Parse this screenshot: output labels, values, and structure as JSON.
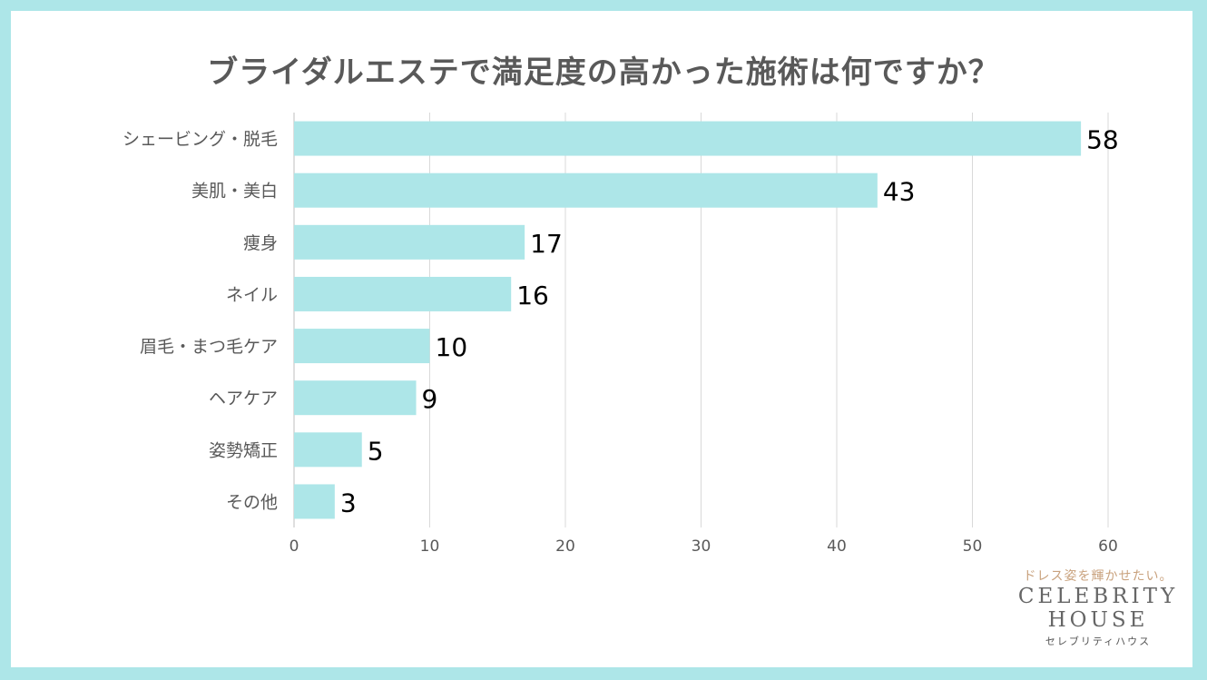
{
  "chart_data": {
    "type": "bar",
    "orientation": "horizontal",
    "title": "ブライダルエステで満足度の高かった施術は何ですか？",
    "categories": [
      "シェービング・脱毛",
      "美肌・美白",
      "痩身",
      "ネイル",
      "眉毛・まつ毛ケア",
      "ヘアケア",
      "姿勢矯正",
      "その他"
    ],
    "values": [
      58,
      43,
      17,
      16,
      10,
      9,
      5,
      3
    ],
    "xlim": [
      0,
      60
    ],
    "xticks": [
      0,
      10,
      20,
      30,
      40,
      50,
      60
    ],
    "grid": true,
    "bar_color": "#ade6e8",
    "background_color": "#ade6e8",
    "title_color": "#595959"
  },
  "logo": {
    "tagline": "ドレス姿を輝かせたい。",
    "line1": "CELEBRITY",
    "line2": "HOUSE",
    "kana": "セレブリティハウス"
  }
}
